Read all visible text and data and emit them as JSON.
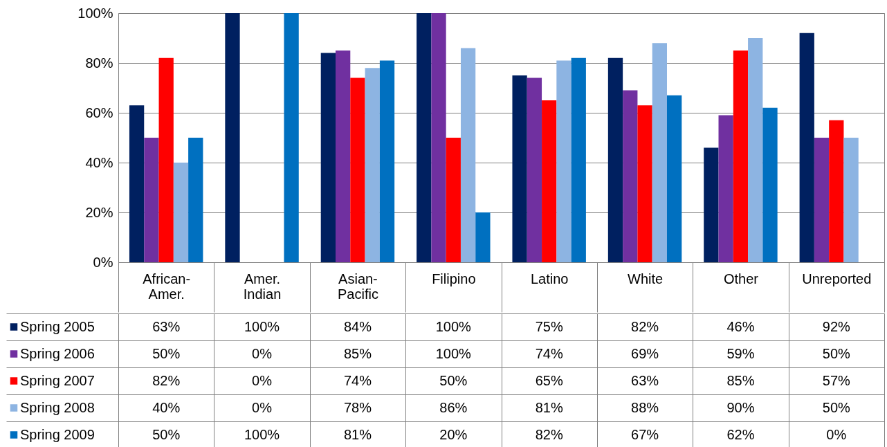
{
  "chart_data": {
    "type": "bar",
    "categories": [
      "African-Amer.",
      "Amer. Indian",
      "Asian-Pacific",
      "Filipino",
      "Latino",
      "White",
      "Other",
      "Unreported"
    ],
    "ylim": [
      0,
      100
    ],
    "yticks": [
      {
        "value": 0,
        "label": "0%"
      },
      {
        "value": 20,
        "label": "20%"
      },
      {
        "value": 40,
        "label": "40%"
      },
      {
        "value": 60,
        "label": "60%"
      },
      {
        "value": 80,
        "label": "80%"
      },
      {
        "value": 100,
        "label": "100%"
      }
    ],
    "grid": "y",
    "legend": "bottom left",
    "series": [
      {
        "name": "Spring 2005",
        "color": "#002060",
        "values": [
          63,
          100,
          84,
          100,
          75,
          82,
          46,
          92
        ],
        "value_labels": [
          "63%",
          "100%",
          "84%",
          "100%",
          "75%",
          "82%",
          "46%",
          "92%"
        ]
      },
      {
        "name": "Spring 2006",
        "color": "#7030a0",
        "values": [
          50,
          0,
          85,
          100,
          74,
          69,
          59,
          50
        ],
        "value_labels": [
          "50%",
          "0%",
          "85%",
          "100%",
          "74%",
          "69%",
          "59%",
          "50%"
        ]
      },
      {
        "name": "Spring 2007",
        "color": "#ff0000",
        "values": [
          82,
          0,
          74,
          50,
          65,
          63,
          85,
          57
        ],
        "value_labels": [
          "82%",
          "0%",
          "74%",
          "50%",
          "65%",
          "63%",
          "85%",
          "57%"
        ]
      },
      {
        "name": "Spring 2008",
        "color": "#8db4e2",
        "values": [
          40,
          0,
          78,
          86,
          81,
          88,
          90,
          50
        ],
        "value_labels": [
          "40%",
          "0%",
          "78%",
          "86%",
          "81%",
          "88%",
          "90%",
          "50%"
        ]
      },
      {
        "name": "Spring 2009",
        "color": "#0070c0",
        "values": [
          50,
          100,
          81,
          20,
          82,
          67,
          62,
          0
        ],
        "value_labels": [
          "50%",
          "100%",
          "81%",
          "20%",
          "82%",
          "67%",
          "62%",
          "0%"
        ]
      }
    ]
  }
}
